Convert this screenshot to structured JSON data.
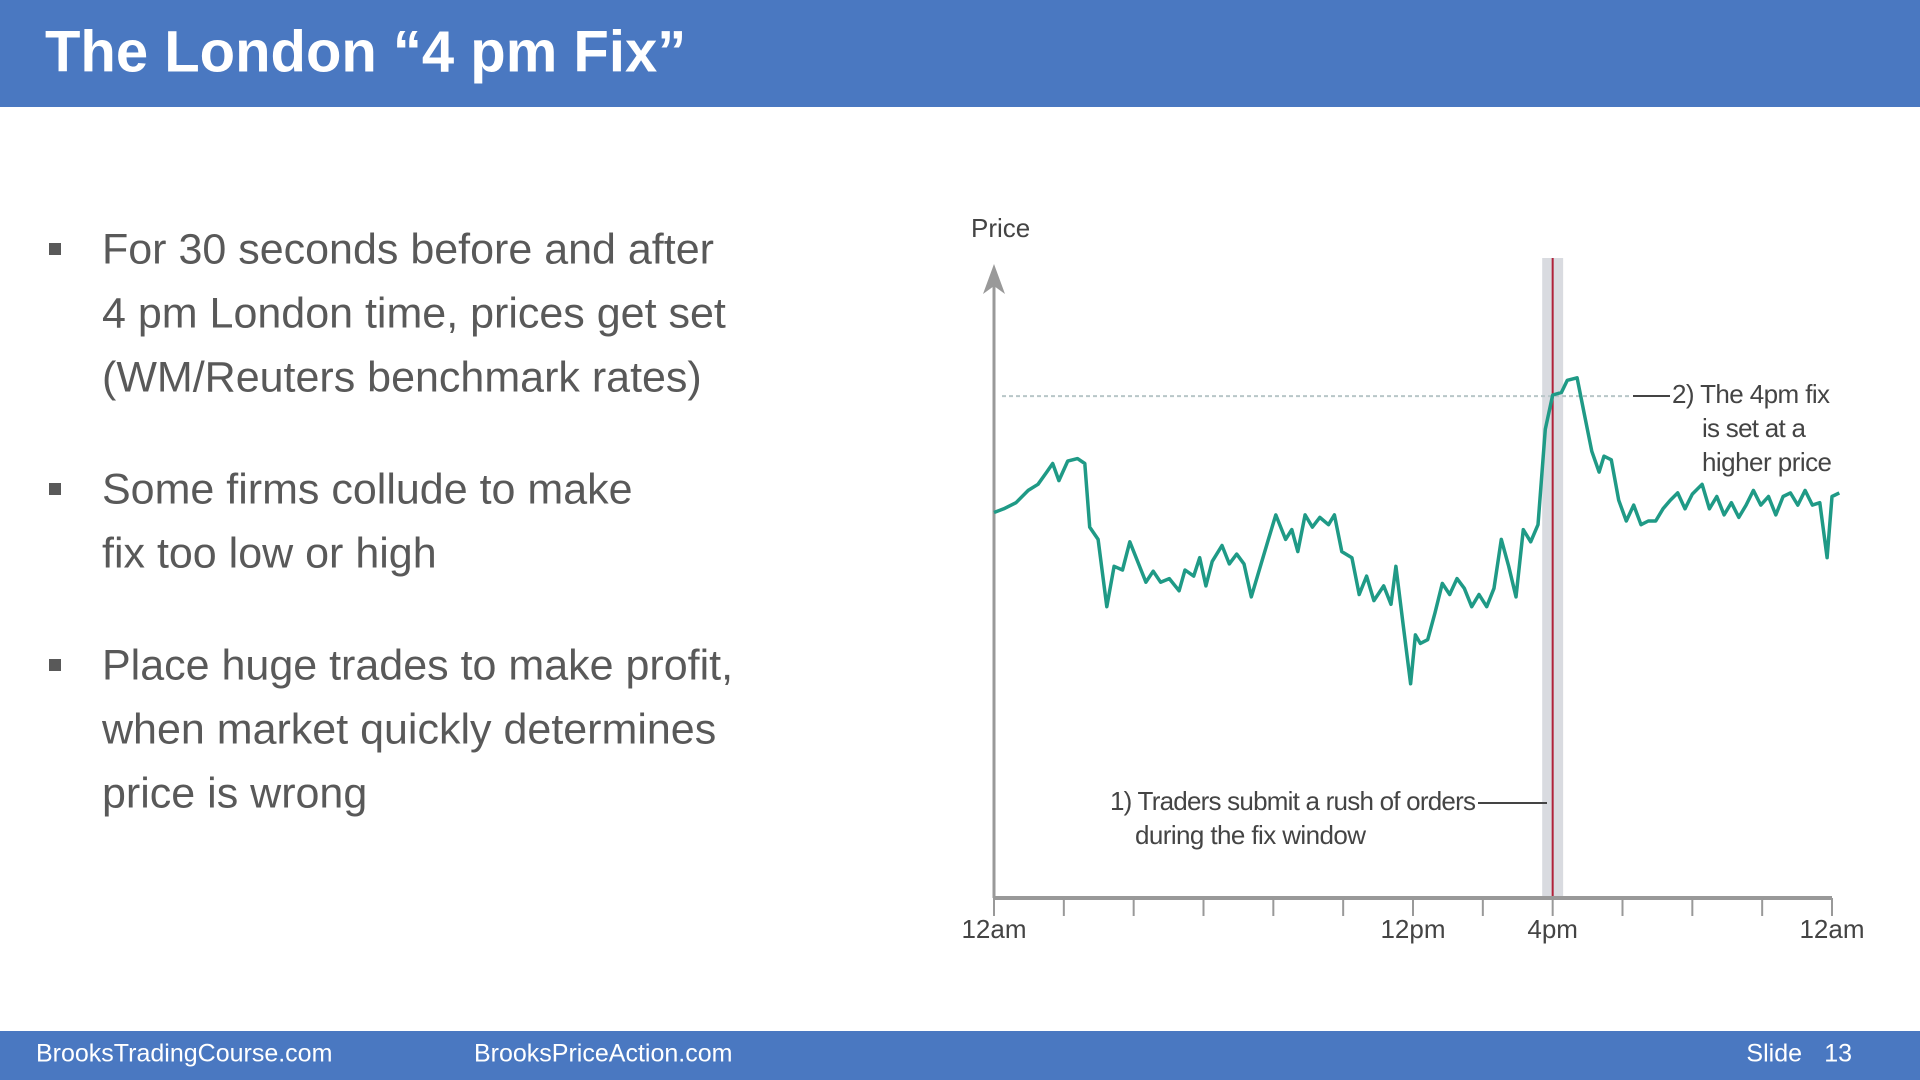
{
  "header": {
    "title": "The London “4 pm Fix”"
  },
  "bullets": [
    [
      "For 30 seconds before and after",
      "4 pm London time, prices get set",
      "(WM/Reuters benchmark rates)"
    ],
    [
      "Some firms collude to make",
      "fix too low or high"
    ],
    [
      "Place huge trades to make profit,",
      "when market quickly determines",
      "price is wrong"
    ]
  ],
  "chart_data": {
    "type": "line",
    "ylabel": "Price",
    "color": "#1f9a86",
    "x": [
      0,
      0.28,
      0.63,
      0.98,
      1.26,
      1.51,
      1.68,
      1.86,
      2.11,
      2.39,
      2.6,
      2.74,
      2.98,
      3.23,
      3.44,
      3.68,
      3.89,
      4.14,
      4.35,
      4.56,
      4.77,
      5.02,
      5.3,
      5.47,
      5.72,
      5.89,
      6.07,
      6.25,
      6.53,
      6.74,
      6.95,
      7.16,
      7.37,
      7.65,
      7.86,
      8.07,
      8.35,
      8.53,
      8.7,
      8.91,
      9.12,
      9.33,
      9.58,
      9.75,
      9.96,
      10.25,
      10.46,
      10.67,
      10.88,
      11.16,
      11.37,
      11.51,
      11.72,
      11.93,
      12.07,
      12.21,
      12.42,
      12.63,
      12.84,
      13.05,
      13.26,
      13.47,
      13.68,
      13.89,
      14.11,
      14.32,
      14.53,
      14.74,
      14.95,
      15.16,
      15.37,
      15.58,
      15.79,
      16.0,
      16.25,
      16.42,
      16.7,
      16.91,
      17.12,
      17.33,
      17.47,
      17.68,
      17.89,
      18.11,
      18.32,
      18.53,
      18.74,
      18.95,
      19.16,
      19.37,
      19.58,
      19.79,
      20.0,
      20.28,
      20.49,
      20.7,
      20.91,
      21.12,
      21.33,
      21.54,
      21.75,
      21.96,
      22.18,
      22.39,
      22.6,
      22.81,
      23.02,
      23.23,
      23.44,
      23.65,
      23.86,
      24.0,
      24.21
    ],
    "values": [
      315,
      318,
      323,
      333,
      338,
      348,
      355,
      341,
      357,
      359,
      355,
      303,
      293,
      238,
      271,
      268,
      291,
      273,
      258,
      267,
      258,
      261,
      251,
      268,
      263,
      278,
      255,
      275,
      288,
      273,
      281,
      273,
      246,
      273,
      293,
      313,
      293,
      301,
      283,
      313,
      303,
      311,
      305,
      313,
      283,
      278,
      248,
      263,
      243,
      255,
      240,
      271,
      223,
      175,
      215,
      208,
      211,
      233,
      257,
      248,
      261,
      253,
      238,
      248,
      238,
      253,
      293,
      271,
      246,
      301,
      291,
      305,
      383,
      411,
      413,
      423,
      425,
      395,
      365,
      348,
      361,
      358,
      325,
      308,
      321,
      305,
      308,
      308,
      318,
      325,
      331,
      318,
      330,
      338,
      318,
      328,
      313,
      323,
      311,
      321,
      333,
      321,
      328,
      313,
      328,
      331,
      321,
      333,
      321,
      323,
      278,
      328,
      331
    ],
    "xlim": [
      0,
      24
    ],
    "ylim": [
      0,
      518
    ],
    "xticks": [
      {
        "value": 0,
        "label": "12am"
      },
      {
        "value": 12,
        "label": "12pm"
      },
      {
        "value": 16,
        "label": "4pm"
      },
      {
        "value": 24,
        "label": "12am"
      }
    ],
    "minor_xticks": [
      2,
      4,
      6,
      8,
      10,
      14,
      18,
      20,
      22
    ],
    "highlight_tick_color": "#b0213a",
    "fix_time": 16,
    "fix_window": [
      15.7,
      16.3
    ],
    "fix_level": 410,
    "annotations": [
      [
        "2) The 4pm fix",
        "is set at a",
        "higher price"
      ],
      [
        "1) Traders submit a rush of orders",
        "during the fix window"
      ]
    ]
  },
  "footer": {
    "left": "BrooksTradingCourse.com",
    "center": "BrooksPriceAction.com",
    "slide_label": "Slide",
    "slide_number": "13"
  }
}
